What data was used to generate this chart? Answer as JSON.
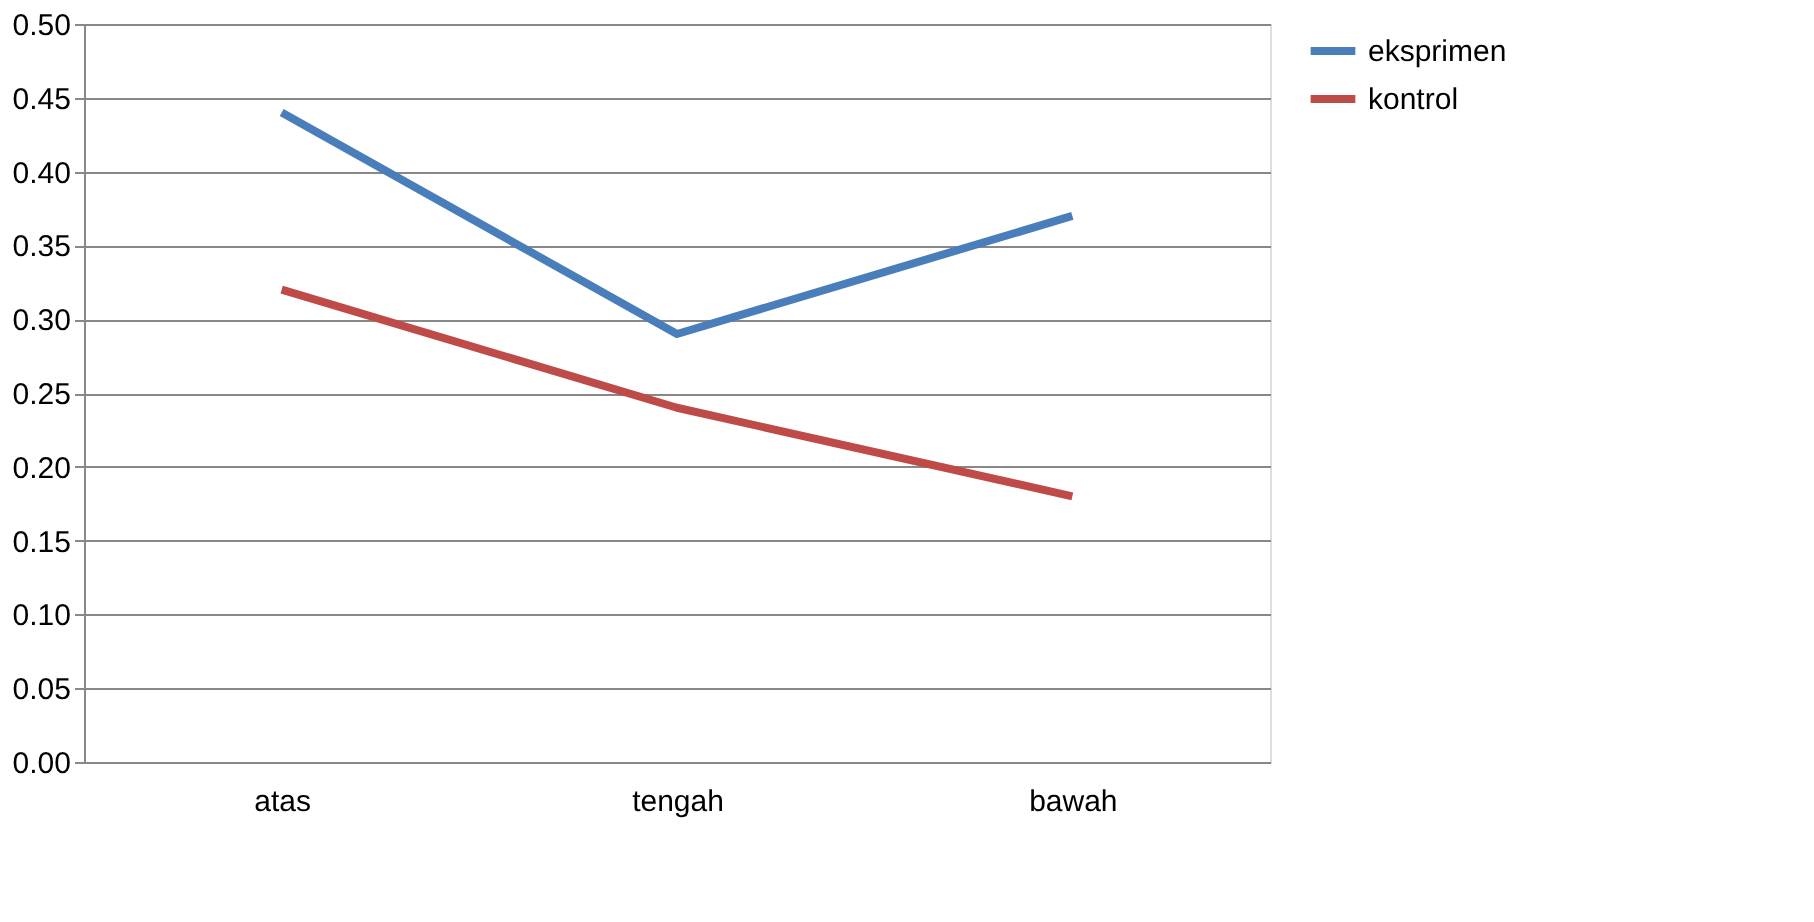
{
  "chart_data": {
    "type": "line",
    "categories": [
      "atas",
      "tengah",
      "bawah"
    ],
    "series": [
      {
        "name": "eksprimen",
        "color": "#4a7ebb",
        "values": [
          0.44,
          0.29,
          0.37
        ]
      },
      {
        "name": "kontrol",
        "color": "#be4b48",
        "values": [
          0.32,
          0.24,
          0.18
        ]
      }
    ],
    "ylim": [
      0,
      0.5
    ],
    "yticks": [
      {
        "value": 0,
        "label": "0.00"
      },
      {
        "value": 0.05,
        "label": "0.05"
      },
      {
        "value": 0.1,
        "label": "0.10"
      },
      {
        "value": 0.15,
        "label": "0.15"
      },
      {
        "value": 0.2,
        "label": "0.20"
      },
      {
        "value": 0.25,
        "label": "0.25"
      },
      {
        "value": 0.3,
        "label": "0.30"
      },
      {
        "value": 0.35,
        "label": "0.35"
      },
      {
        "value": 0.4,
        "label": "0.40"
      },
      {
        "value": 0.45,
        "label": "0.45"
      },
      {
        "value": 0.5,
        "label": "0.50"
      }
    ],
    "grid": "y",
    "legend": "right",
    "marker": "none",
    "line_style": "solid"
  }
}
